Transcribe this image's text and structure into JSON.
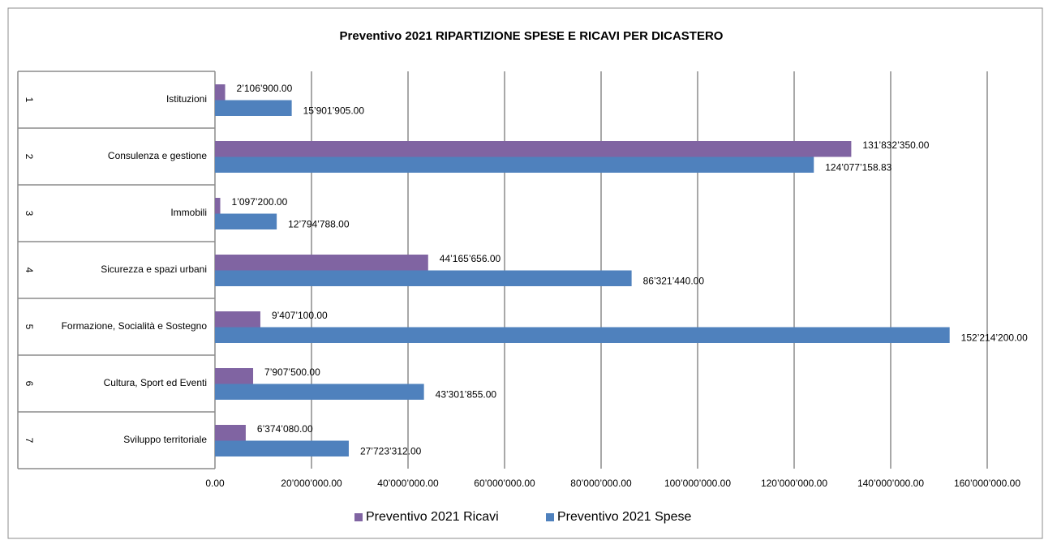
{
  "chart_data": {
    "type": "bar",
    "orientation": "horizontal",
    "title": "Preventivo 2021 RIPARTIZIONE SPESE E RICAVI PER DICASTERO",
    "category_numbers": [
      "1",
      "2",
      "3",
      "4",
      "5",
      "6",
      "7"
    ],
    "categories": [
      "Istituzioni",
      "Consulenza e gestione",
      "Immobili",
      "Sicurezza e spazi urbani",
      "Formazione, Socialità e Sostegno",
      "Cultura, Sport ed Eventi",
      "Sviluppo territoriale"
    ],
    "series": [
      {
        "name": "Preventivo 2021 Ricavi",
        "color": "#8064a2",
        "values": [
          2106900,
          131832350,
          1097200,
          44165656,
          9407100,
          7907500,
          6374080
        ],
        "value_labels": [
          "2’106’900.00",
          "131’832’350.00",
          "1’097’200.00",
          "44’165’656.00",
          "9’407’100.00",
          "7’907’500.00",
          "6’374’080.00"
        ]
      },
      {
        "name": "Preventivo 2021 Spese",
        "color": "#4f81bd",
        "values": [
          15901905,
          124077158.83,
          12794788,
          86321440,
          152214200,
          43301855,
          27723312
        ],
        "value_labels": [
          "15’901’905.00",
          "124’077’158.83",
          "12’794’788.00",
          "86’321’440.00",
          "152’214’200.00",
          "43’301’855.00",
          "27’723’312.00"
        ]
      }
    ],
    "xlim": [
      0,
      160000000
    ],
    "xticks": [
      {
        "value": 0,
        "label": "0.00"
      },
      {
        "value": 20000000,
        "label": "20’000’000.00"
      },
      {
        "value": 40000000,
        "label": "40’000’000.00"
      },
      {
        "value": 60000000,
        "label": "60’000’000.00"
      },
      {
        "value": 80000000,
        "label": "80’000’000.00"
      },
      {
        "value": 100000000,
        "label": "100’000’000.00"
      },
      {
        "value": 120000000,
        "label": "120’000’000.00"
      },
      {
        "value": 140000000,
        "label": "140’000’000.00"
      },
      {
        "value": 160000000,
        "label": "160’000’000.00"
      }
    ],
    "grid": true,
    "legend": "bottom"
  }
}
